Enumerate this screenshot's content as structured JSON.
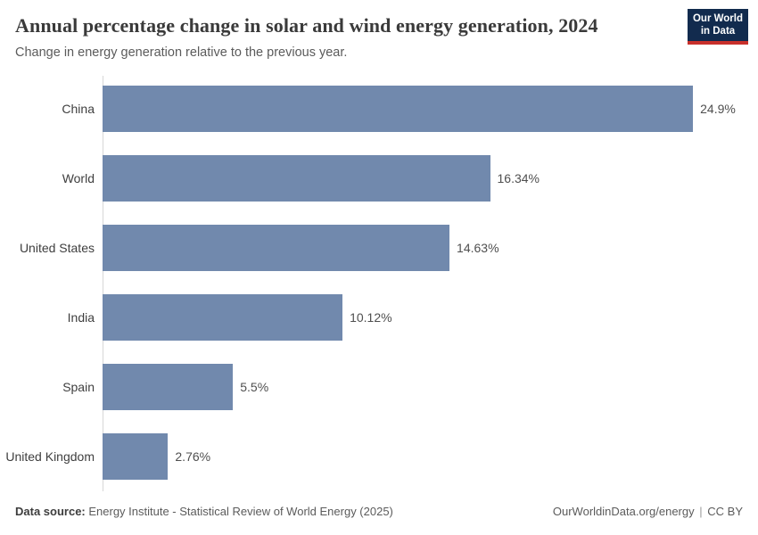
{
  "header": {
    "title": "Annual percentage change in solar and wind energy generation, 2024",
    "subtitle": "Change in energy generation relative to the previous year."
  },
  "logo": {
    "line1": "Our World",
    "line2": "in Data",
    "bg_color": "#122b4e",
    "accent_color": "#c8302b"
  },
  "chart_data": {
    "type": "bar",
    "orientation": "horizontal",
    "title": "Annual percentage change in solar and wind energy generation, 2024",
    "subtitle": "Change in energy generation relative to the previous year.",
    "categories": [
      "China",
      "World",
      "United States",
      "India",
      "Spain",
      "United Kingdom"
    ],
    "values": [
      24.9,
      16.34,
      14.63,
      10.12,
      5.5,
      2.76
    ],
    "value_labels": [
      "24.9%",
      "16.34%",
      "14.63%",
      "10.12%",
      "5.5%",
      "2.76%"
    ],
    "unit": "%",
    "xlabel": "",
    "ylabel": "",
    "xlim": [
      0,
      26.7
    ],
    "grid": false,
    "legend": false,
    "bar_color": "#7189ad"
  },
  "footer": {
    "source_label": "Data source:",
    "source_text": " Energy Institute - Statistical Review of World Energy (2025)",
    "link": "OurWorldinData.org/energy",
    "separator": "|",
    "license": "CC BY"
  }
}
